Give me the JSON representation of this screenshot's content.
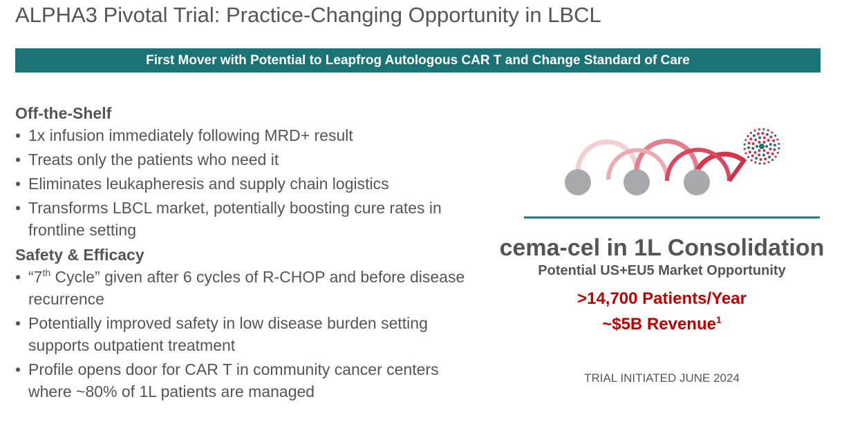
{
  "title": "ALPHA3 Pivotal Trial: Practice-Changing Opportunity in LBCL",
  "banner": "First Mover with Potential to Leapfrog Autologous CAR T and Change Standard of Care",
  "sections": [
    {
      "heading": "Off-the-Shelf",
      "bullets": [
        "1x infusion immediately following MRD+ result",
        "Treats only the patients who need it",
        "Eliminates leukapheresis and supply chain logistics",
        "Transforms LBCL market, potentially boosting cure rates in frontline setting"
      ]
    },
    {
      "heading": "Safety & Efficacy",
      "bullets": [
        {
          "text": "“7",
          "sup": "th",
          "after": " Cycle” given after 6 cycles of R-CHOP and before disease recurrence"
        },
        "Potentially improved safety in low disease burden setting supports outpatient treatment",
        "Profile opens door for CAR T in community cancer centers where ~80% of 1L patients are managed"
      ]
    }
  ],
  "panel": {
    "title": "cema-cel in 1L Consolidation",
    "subtitle": "Potential US+EU5 Market Opportunity",
    "patients": ">14,700 Patients/Year",
    "revenue": {
      "text": "~$5B Revenue",
      "sup": "1"
    },
    "trial": "TRIAL INITIATED JUNE 2024"
  }
}
